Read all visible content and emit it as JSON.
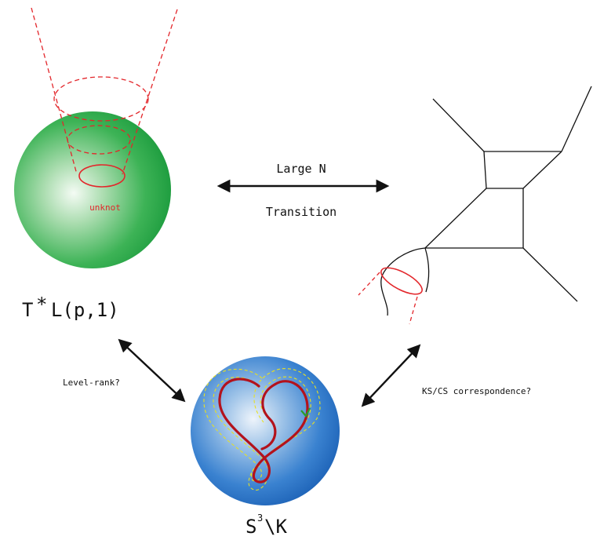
{
  "labels": {
    "unknot": "unknot",
    "large_n": "Large N",
    "transition": "Transition",
    "tl_T": "T",
    "tl_star": "*",
    "tl_rest": "L(p,1)",
    "level_rank": "Level-rank?",
    "ks_cs": "KS/CS correspondence?",
    "s3_S": "S",
    "s3_exp": "3",
    "s3_rest": "\\K"
  },
  "colors": {
    "green_sphere": "#1ea545",
    "blue_sphere": "#1f6ec4",
    "red": "#e3262b",
    "dark_red": "#b3121c",
    "yellow_dashed": "#e8e020",
    "green_arrow": "#2a9d2a",
    "black": "#111111"
  }
}
